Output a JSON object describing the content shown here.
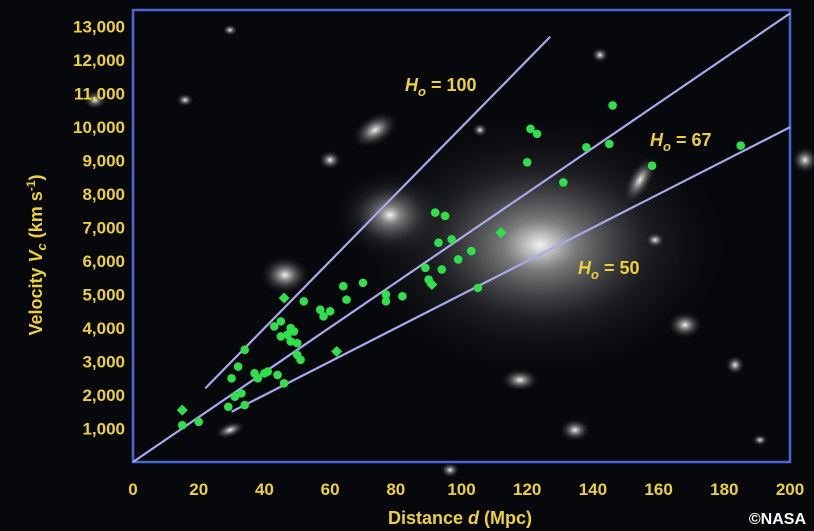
{
  "chart_data": {
    "type": "scatter",
    "xlabel_prefix": "Distance ",
    "xlabel_var": "d",
    "xlabel_suffix": " (Mpc)",
    "ylabel_prefix": "Velocity ",
    "ylabel_var": "V",
    "ylabel_sub": "c",
    "ylabel_units": " (km s",
    "ylabel_exp": "-1",
    "ylabel_close": ")",
    "xlim": [
      0,
      200
    ],
    "ylim": [
      0,
      13500
    ],
    "x_ticks": [
      0,
      20,
      40,
      60,
      80,
      100,
      120,
      140,
      160,
      180,
      200
    ],
    "x_tick_labels": [
      "0",
      "20",
      "40",
      "60",
      "80",
      "100",
      "120",
      "140",
      "160",
      "180",
      "200"
    ],
    "y_ticks": [
      1000,
      2000,
      3000,
      4000,
      5000,
      6000,
      7000,
      8000,
      9000,
      10000,
      11000,
      12000,
      13000
    ],
    "y_tick_labels": [
      "1,000",
      "2,000",
      "3,000",
      "4,000",
      "5,000",
      "6,000",
      "7,000",
      "8,000",
      "9,000",
      "10,000",
      "11,000",
      "12,000",
      "13,000"
    ],
    "lines": [
      {
        "label_var": "H",
        "label_sub": "o",
        "label_rest": " = 100",
        "x0": 22,
        "x1": 127,
        "slope": 100
      },
      {
        "label_var": "H",
        "label_sub": "o",
        "label_rest": " = 67",
        "x0": 0,
        "x1": 200,
        "slope": 67
      },
      {
        "label_var": "H",
        "label_sub": "o",
        "label_rest": " = 50",
        "x0": 30,
        "x1": 200,
        "slope": 50
      }
    ],
    "series": [
      {
        "marker": "circle",
        "x": [
          15,
          20,
          29,
          30,
          31,
          32,
          33,
          34,
          34,
          37,
          38,
          40,
          41,
          43,
          44,
          45,
          45,
          46,
          47,
          48,
          48,
          49,
          50,
          50,
          51,
          52,
          57,
          58,
          60,
          64,
          65,
          70,
          77,
          77,
          82,
          89,
          90,
          92,
          93,
          94,
          95,
          97,
          99,
          103,
          105,
          120,
          121,
          123,
          131,
          138,
          145,
          146,
          158,
          185
        ],
        "y": [
          1100,
          1200,
          1650,
          2500,
          1950,
          2850,
          2050,
          3350,
          1700,
          2650,
          2500,
          2650,
          2700,
          4050,
          2600,
          3750,
          4200,
          2350,
          3800,
          4000,
          3600,
          3900,
          3550,
          3200,
          3050,
          4800,
          4550,
          4350,
          4500,
          5250,
          4850,
          5350,
          5000,
          4800,
          4950,
          5800,
          5450,
          7450,
          6550,
          5750,
          7350,
          6650,
          6050,
          6300,
          5200,
          8950,
          9950,
          9800,
          8350,
          9400,
          9500,
          10650,
          8850,
          9450
        ]
      },
      {
        "marker": "diamond",
        "x": [
          15,
          46,
          62,
          91,
          112
        ],
        "y": [
          1550,
          4900,
          3300,
          5300,
          6850
        ]
      }
    ]
  },
  "credit": "©NASA",
  "colors": {
    "text": "#ecd13a",
    "frame": "#4a66d6",
    "line": "#a9a8ee",
    "point": "#2fe04c"
  }
}
